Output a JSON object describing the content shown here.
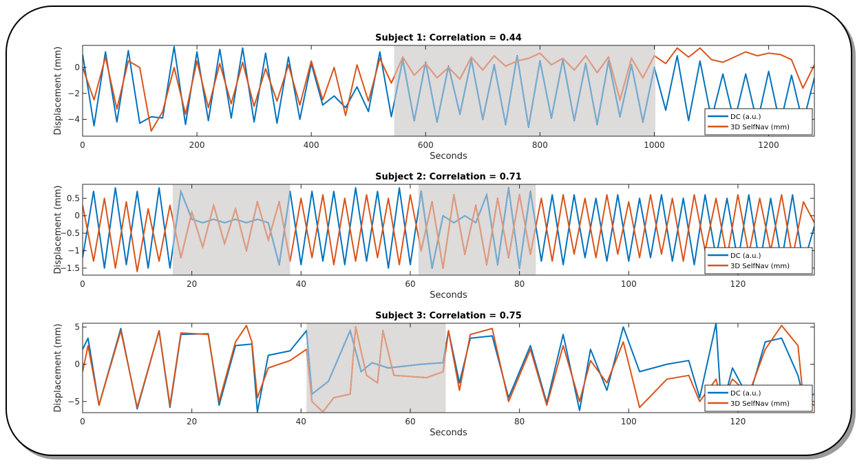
{
  "chart_data": [
    {
      "type": "line",
      "title": "Subject 1: Correlation = 0.44",
      "xlabel": "Seconds",
      "ylabel": "Displacement (mm)",
      "xlim": [
        0,
        1280
      ],
      "ylim": [
        -5.3,
        1.7
      ],
      "xticks": [
        0,
        200,
        400,
        600,
        800,
        1000,
        1200
      ],
      "yticks": [
        -4,
        -2,
        0
      ],
      "shaded_regions": [
        [
          545,
          1002
        ]
      ],
      "legend": {
        "position": "bottom-right",
        "entries": [
          "DC (a.u.)",
          "3D SelfNav (mm)"
        ]
      },
      "series": [
        {
          "name": "DC (a.u.)",
          "color": "#0072BD",
          "x": [
            0,
            20,
            40,
            60,
            80,
            100,
            120,
            140,
            160,
            180,
            200,
            220,
            240,
            260,
            280,
            300,
            320,
            340,
            360,
            380,
            400,
            420,
            440,
            460,
            480,
            500,
            520,
            540,
            560,
            580,
            600,
            620,
            640,
            660,
            680,
            700,
            720,
            740,
            760,
            780,
            800,
            820,
            840,
            860,
            880,
            900,
            920,
            940,
            960,
            980,
            1000,
            1020,
            1040,
            1060,
            1080,
            1100,
            1120,
            1140,
            1160,
            1180,
            1200,
            1220,
            1240,
            1260,
            1280
          ],
          "y": [
            1.0,
            -4.5,
            1.2,
            -4.2,
            1.3,
            -4.3,
            -3.8,
            -3.9,
            1.6,
            -4.4,
            1.2,
            -4.1,
            1.4,
            -3.9,
            1.5,
            -4.2,
            1.1,
            -4.3,
            0.8,
            -4.0,
            0.3,
            -2.9,
            -2.2,
            -3.1,
            -1.5,
            -3.4,
            1.2,
            -3.8,
            0.6,
            -4.1,
            0.4,
            -4.2,
            0.1,
            -3.6,
            0.6,
            -4.0,
            0.2,
            -4.4,
            0.9,
            -4.6,
            0.5,
            -3.9,
            0.6,
            -4.1,
            0.3,
            -4.4,
            0.5,
            -3.8,
            0.2,
            -4.2,
            0.0,
            -3.3,
            0.9,
            -4.1,
            0.5,
            -4.0,
            -0.5,
            -4.2,
            -0.5,
            -4.3,
            -0.3,
            -4.4,
            -0.6,
            -4.3,
            -0.8
          ]
        },
        {
          "name": "3D SelfNav (mm)",
          "color": "#D95319",
          "x": [
            0,
            20,
            40,
            60,
            80,
            100,
            120,
            140,
            160,
            180,
            200,
            220,
            240,
            260,
            280,
            300,
            320,
            340,
            360,
            380,
            400,
            420,
            440,
            460,
            480,
            500,
            520,
            540,
            560,
            580,
            600,
            620,
            640,
            660,
            680,
            700,
            720,
            740,
            760,
            780,
            800,
            820,
            840,
            860,
            880,
            900,
            920,
            940,
            960,
            980,
            1000,
            1020,
            1040,
            1060,
            1080,
            1100,
            1120,
            1140,
            1160,
            1180,
            1200,
            1220,
            1240,
            1260,
            1280
          ],
          "y": [
            0.0,
            -2.5,
            0.8,
            -3.2,
            0.5,
            0.0,
            -4.9,
            -3.4,
            0.0,
            -3.6,
            0.5,
            -3.1,
            0.3,
            -2.8,
            0.4,
            -3.0,
            -0.1,
            -2.6,
            0.2,
            -2.9,
            0.5,
            -2.5,
            0.0,
            -3.7,
            0.2,
            -2.6,
            0.7,
            -1.2,
            0.8,
            -0.6,
            0.3,
            -0.8,
            0.0,
            -0.9,
            0.8,
            -0.2,
            0.9,
            0.1,
            0.5,
            0.7,
            1.1,
            0.2,
            0.7,
            -0.2,
            0.9,
            -0.4,
            0.8,
            -2.5,
            0.7,
            -0.8,
            0.9,
            0.3,
            1.5,
            0.8,
            1.5,
            0.6,
            0.4,
            0.8,
            1.2,
            0.9,
            1.1,
            1.0,
            0.6,
            -1.6,
            0.2
          ]
        }
      ]
    },
    {
      "type": "line",
      "title": "Subject 2: Correlation = 0.71",
      "xlabel": "Seconds",
      "ylabel": "Displacement (mm)",
      "xlim": [
        0,
        134
      ],
      "ylim": [
        -1.7,
        0.9
      ],
      "xticks": [
        0,
        20,
        40,
        60,
        80,
        100,
        120
      ],
      "yticks": [
        -1.5,
        -1,
        -0.5,
        0,
        0.5
      ],
      "shaded_regions": [
        [
          16.5,
          38
        ],
        [
          61.5,
          83
        ]
      ],
      "legend": {
        "position": "bottom-right",
        "entries": [
          "DC (a.u.)",
          "3D SelfNav (mm)"
        ]
      },
      "series": [
        {
          "name": "DC (a.u.)",
          "color": "#0072BD",
          "x": [
            0,
            2,
            4,
            6,
            8,
            10,
            12,
            14,
            16,
            18,
            20,
            22,
            24,
            26,
            28,
            30,
            32,
            34,
            36,
            38,
            40,
            42,
            44,
            46,
            48,
            50,
            52,
            54,
            56,
            58,
            60,
            62,
            64,
            66,
            68,
            70,
            72,
            74,
            76,
            78,
            80,
            82,
            84,
            86,
            88,
            90,
            92,
            94,
            96,
            98,
            100,
            102,
            104,
            106,
            108,
            110,
            112,
            114,
            116,
            118,
            120,
            122,
            124,
            126,
            128,
            130,
            132,
            134
          ],
          "y": [
            -1.2,
            0.7,
            -1.5,
            0.8,
            -1.4,
            0.7,
            -1.5,
            0.8,
            -1.5,
            0.7,
            -0.1,
            -0.2,
            -0.1,
            -0.2,
            -0.1,
            -0.2,
            -0.1,
            -0.2,
            -1.4,
            0.7,
            -1.4,
            0.7,
            -1.3,
            0.7,
            -1.4,
            0.8,
            -1.3,
            0.7,
            -1.5,
            0.8,
            -1.4,
            0.7,
            -1.5,
            0.0,
            -0.2,
            0.0,
            -0.2,
            0.6,
            -1.4,
            0.8,
            -1.5,
            0.7,
            -1.3,
            0.6,
            -1.4,
            0.6,
            -1.2,
            0.5,
            -1.3,
            0.6,
            -1.3,
            0.5,
            -1.2,
            0.6,
            -1.3,
            0.5,
            -1.4,
            0.6,
            -1.2,
            0.5,
            -1.3,
            0.6,
            -1.4,
            0.5,
            -1.3,
            0.6,
            -1.4,
            -0.3
          ]
        },
        {
          "name": "3D SelfNav (mm)",
          "color": "#D95319",
          "x": [
            0,
            2,
            4,
            6,
            8,
            10,
            12,
            14,
            16,
            18,
            20,
            22,
            24,
            26,
            28,
            30,
            32,
            34,
            36,
            38,
            40,
            42,
            44,
            46,
            48,
            50,
            52,
            54,
            56,
            58,
            60,
            62,
            64,
            66,
            68,
            70,
            72,
            74,
            76,
            78,
            80,
            82,
            84,
            86,
            88,
            90,
            92,
            94,
            96,
            98,
            100,
            102,
            104,
            106,
            108,
            110,
            112,
            114,
            116,
            118,
            120,
            122,
            124,
            126,
            128,
            130,
            132,
            134
          ],
          "y": [
            0.3,
            -1.3,
            0.5,
            -1.5,
            0.4,
            -1.6,
            0.2,
            -1.3,
            0.3,
            -1.2,
            0.1,
            -0.9,
            0.3,
            -0.8,
            0.2,
            -1.0,
            0.4,
            -0.7,
            0.4,
            -1.3,
            0.5,
            -1.2,
            0.6,
            -1.4,
            0.5,
            -1.3,
            0.6,
            -1.2,
            0.5,
            -1.4,
            0.6,
            -1.0,
            0.4,
            -1.5,
            0.6,
            -1.1,
            0.3,
            -1.4,
            0.5,
            -1.2,
            0.6,
            -1.1,
            0.5,
            -1.3,
            0.6,
            -1.1,
            0.5,
            -1.2,
            0.6,
            -1.1,
            0.4,
            -1.2,
            0.6,
            -1.1,
            0.5,
            -1.3,
            0.6,
            -1.0,
            0.5,
            -1.2,
            0.6,
            -1.1,
            0.5,
            -1.0,
            0.6,
            -1.2,
            0.4,
            -0.2
          ]
        }
      ]
    },
    {
      "type": "line",
      "title": "Subject 3: Correlation = 0.75",
      "xlabel": "Seconds",
      "ylabel": "Displacement (mm)",
      "xlim": [
        0,
        134
      ],
      "ylim": [
        -6.5,
        5.5
      ],
      "xticks": [
        0,
        20,
        40,
        60,
        80,
        100,
        120
      ],
      "yticks": [
        -5,
        0,
        5
      ],
      "shaded_regions": [
        [
          41,
          66.5
        ]
      ],
      "legend": {
        "position": "bottom-right",
        "entries": [
          "DC (a.u.)",
          "3D SelfNav (mm)"
        ]
      },
      "series": [
        {
          "name": "DC (a.u.)",
          "color": "#0072BD",
          "x": [
            0,
            1,
            3,
            7,
            10,
            14,
            16,
            18,
            23,
            25,
            28,
            31,
            32,
            34,
            38,
            41,
            42,
            45,
            49,
            51,
            53,
            56,
            62,
            66,
            67,
            69,
            71,
            75,
            78,
            82,
            85,
            88,
            91,
            93,
            96,
            99,
            102,
            107,
            111,
            113,
            116,
            117,
            119,
            122,
            125,
            128,
            131,
            132,
            134
          ],
          "y": [
            2.0,
            3.5,
            -5.5,
            4.8,
            -6.0,
            4.5,
            -5.8,
            4.0,
            4.1,
            -5.5,
            2.5,
            2.7,
            -6.4,
            1.2,
            1.8,
            4.5,
            -4.0,
            -2.3,
            4.5,
            -1.0,
            0.2,
            -0.5,
            0.0,
            0.2,
            4.5,
            -2.5,
            3.5,
            3.8,
            -4.5,
            2.5,
            -5.2,
            4.0,
            -6.2,
            2.0,
            -3.5,
            5.0,
            -1.0,
            0.0,
            0.5,
            -4.5,
            5.5,
            -6.2,
            -0.5,
            -4.6,
            3.0,
            3.5,
            -1.5,
            -4.5,
            -4.0
          ]
        },
        {
          "name": "3D SelfNav (mm)",
          "color": "#D95319",
          "x": [
            0,
            1,
            3,
            7,
            10,
            14,
            16,
            18,
            23,
            25,
            28,
            30,
            31,
            32,
            34,
            38,
            41,
            42,
            44,
            46,
            49,
            50,
            52,
            54,
            55,
            57,
            63,
            66,
            67,
            69,
            71,
            75,
            78,
            82,
            85,
            88,
            91,
            93,
            96,
            99,
            102,
            107,
            111,
            113,
            116,
            117,
            119,
            122,
            125,
            128,
            131,
            132,
            134
          ],
          "y": [
            -1.0,
            2.5,
            -5.5,
            4.5,
            -5.8,
            4.5,
            -5.5,
            4.2,
            4.0,
            -5.0,
            3.0,
            5.2,
            3.0,
            -4.5,
            -0.5,
            0.5,
            2.0,
            -5.0,
            -6.4,
            -4.5,
            -4.0,
            5.0,
            -1.5,
            -2.5,
            4.5,
            -1.5,
            -1.8,
            -1.0,
            4.5,
            -3.5,
            4.0,
            4.8,
            -5.0,
            2.0,
            -5.5,
            2.5,
            -5.0,
            0.5,
            -2.5,
            3.0,
            -5.8,
            -2.0,
            -1.5,
            -5.0,
            -2.0,
            -5.0,
            -2.0,
            -4.0,
            2.0,
            5.2,
            2.5,
            -4.8,
            -5.5
          ]
        }
      ]
    }
  ]
}
